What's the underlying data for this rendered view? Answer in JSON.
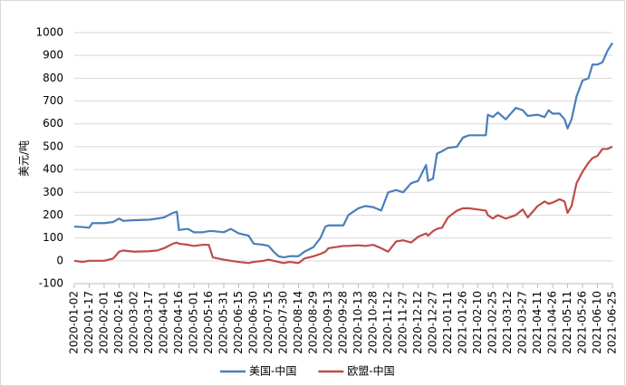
{
  "chart_data": {
    "type": "line",
    "y_label": "美元/吨",
    "x": [
      "2020-01-02",
      "2020-01-10",
      "2020-01-17",
      "2020-01-20",
      "2020-02-01",
      "2020-02-10",
      "2020-02-16",
      "2020-02-20",
      "2020-03-02",
      "2020-03-17",
      "2020-03-25",
      "2020-04-01",
      "2020-04-10",
      "2020-04-14",
      "2020-04-16",
      "2020-04-25",
      "2020-05-01",
      "2020-05-10",
      "2020-05-16",
      "2020-05-20",
      "2020-05-31",
      "2020-06-07",
      "2020-06-15",
      "2020-06-25",
      "2020-06-30",
      "2020-07-10",
      "2020-07-15",
      "2020-07-20",
      "2020-07-25",
      "2020-07-30",
      "2020-08-05",
      "2020-08-14",
      "2020-08-20",
      "2020-08-29",
      "2020-09-05",
      "2020-09-10",
      "2020-09-13",
      "2020-09-28",
      "2020-10-03",
      "2020-10-13",
      "2020-10-20",
      "2020-10-28",
      "2020-11-05",
      "2020-11-12",
      "2020-11-20",
      "2020-11-27",
      "2020-12-05",
      "2020-12-12",
      "2020-12-20",
      "2020-12-22",
      "2020-12-27",
      "2020-12-31",
      "2021-01-05",
      "2021-01-11",
      "2021-01-20",
      "2021-01-26",
      "2021-02-01",
      "2021-02-10",
      "2021-02-18",
      "2021-02-20",
      "2021-02-25",
      "2021-03-02",
      "2021-03-10",
      "2021-03-20",
      "2021-03-27",
      "2021-04-01",
      "2021-04-11",
      "2021-04-18",
      "2021-04-22",
      "2021-04-26",
      "2021-05-03",
      "2021-05-08",
      "2021-05-11",
      "2021-05-15",
      "2021-05-20",
      "2021-05-26",
      "2021-06-01",
      "2021-06-05",
      "2021-06-10",
      "2021-06-15",
      "2021-06-20",
      "2021-06-25"
    ],
    "series": [
      {
        "name": "美国-中国",
        "color": "#4a7ebb",
        "values": [
          150,
          148,
          145,
          165,
          165,
          170,
          185,
          175,
          178,
          180,
          185,
          190,
          210,
          215,
          135,
          140,
          125,
          125,
          130,
          130,
          125,
          140,
          120,
          110,
          75,
          70,
          65,
          40,
          20,
          15,
          20,
          20,
          40,
          60,
          100,
          150,
          155,
          155,
          200,
          230,
          240,
          235,
          220,
          300,
          310,
          300,
          340,
          350,
          420,
          350,
          360,
          470,
          480,
          495,
          500,
          540,
          550,
          550,
          550,
          640,
          630,
          650,
          620,
          670,
          660,
          635,
          640,
          630,
          660,
          645,
          645,
          620,
          580,
          620,
          720,
          790,
          800,
          860,
          860,
          870,
          920,
          955
        ]
      },
      {
        "name": "欧盟-中国",
        "color": "#be4b48",
        "values": [
          0,
          -5,
          0,
          0,
          0,
          10,
          40,
          45,
          40,
          42,
          45,
          55,
          75,
          80,
          75,
          70,
          65,
          70,
          70,
          15,
          5,
          0,
          -5,
          -10,
          -5,
          0,
          5,
          0,
          -5,
          -10,
          -5,
          -10,
          10,
          20,
          30,
          40,
          55,
          65,
          65,
          68,
          65,
          70,
          55,
          40,
          85,
          90,
          80,
          105,
          120,
          110,
          130,
          140,
          145,
          190,
          220,
          230,
          230,
          225,
          220,
          200,
          185,
          200,
          185,
          200,
          225,
          190,
          240,
          260,
          250,
          255,
          270,
          260,
          210,
          240,
          340,
          390,
          430,
          450,
          460,
          490,
          490,
          500
        ]
      }
    ],
    "xlim": [
      "2020-01-02",
      "2021-06-25"
    ],
    "xticks": [
      "2020-01-02",
      "2020-01-17",
      "2020-02-01",
      "2020-02-16",
      "2020-03-02",
      "2020-03-17",
      "2020-04-01",
      "2020-04-16",
      "2020-05-01",
      "2020-05-16",
      "2020-05-31",
      "2020-06-15",
      "2020-06-30",
      "2020-07-15",
      "2020-07-30",
      "2020-08-14",
      "2020-08-29",
      "2020-09-13",
      "2020-09-28",
      "2020-10-13",
      "2020-10-28",
      "2020-11-12",
      "2020-11-27",
      "2020-12-12",
      "2020-12-27",
      "2021-01-11",
      "2021-01-26",
      "2021-02-10",
      "2021-02-25",
      "2021-03-12",
      "2021-03-27",
      "2021-04-11",
      "2021-04-26",
      "2021-05-11",
      "2021-05-26",
      "2021-06-10",
      "2021-06-25"
    ],
    "ylim": [
      -100,
      1000
    ],
    "yticks": [
      -100,
      0,
      100,
      200,
      300,
      400,
      500,
      600,
      700,
      800,
      900,
      1000
    ],
    "grid": true
  }
}
